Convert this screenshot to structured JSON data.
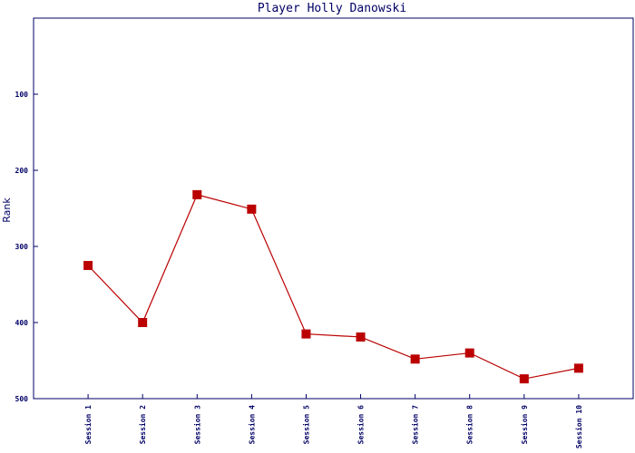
{
  "chart_data": {
    "type": "line",
    "title": "Player Holly Danowski",
    "y_label": "Rank",
    "categories": [
      "Session 1",
      "Session 2",
      "Session 3",
      "Session 4",
      "Session 5",
      "Session 6",
      "Session 7",
      "Session 8",
      "Session 9",
      "Session 10"
    ],
    "series": [
      {
        "name": "Rank",
        "color": "#bb0000",
        "values": [
          325,
          400,
          232,
          251,
          415,
          419,
          448,
          440,
          474,
          460
        ]
      }
    ],
    "ylim": [
      0,
      500
    ],
    "yticks": [
      100,
      200,
      300,
      400,
      500
    ],
    "y_inverted": true,
    "grid": false
  }
}
